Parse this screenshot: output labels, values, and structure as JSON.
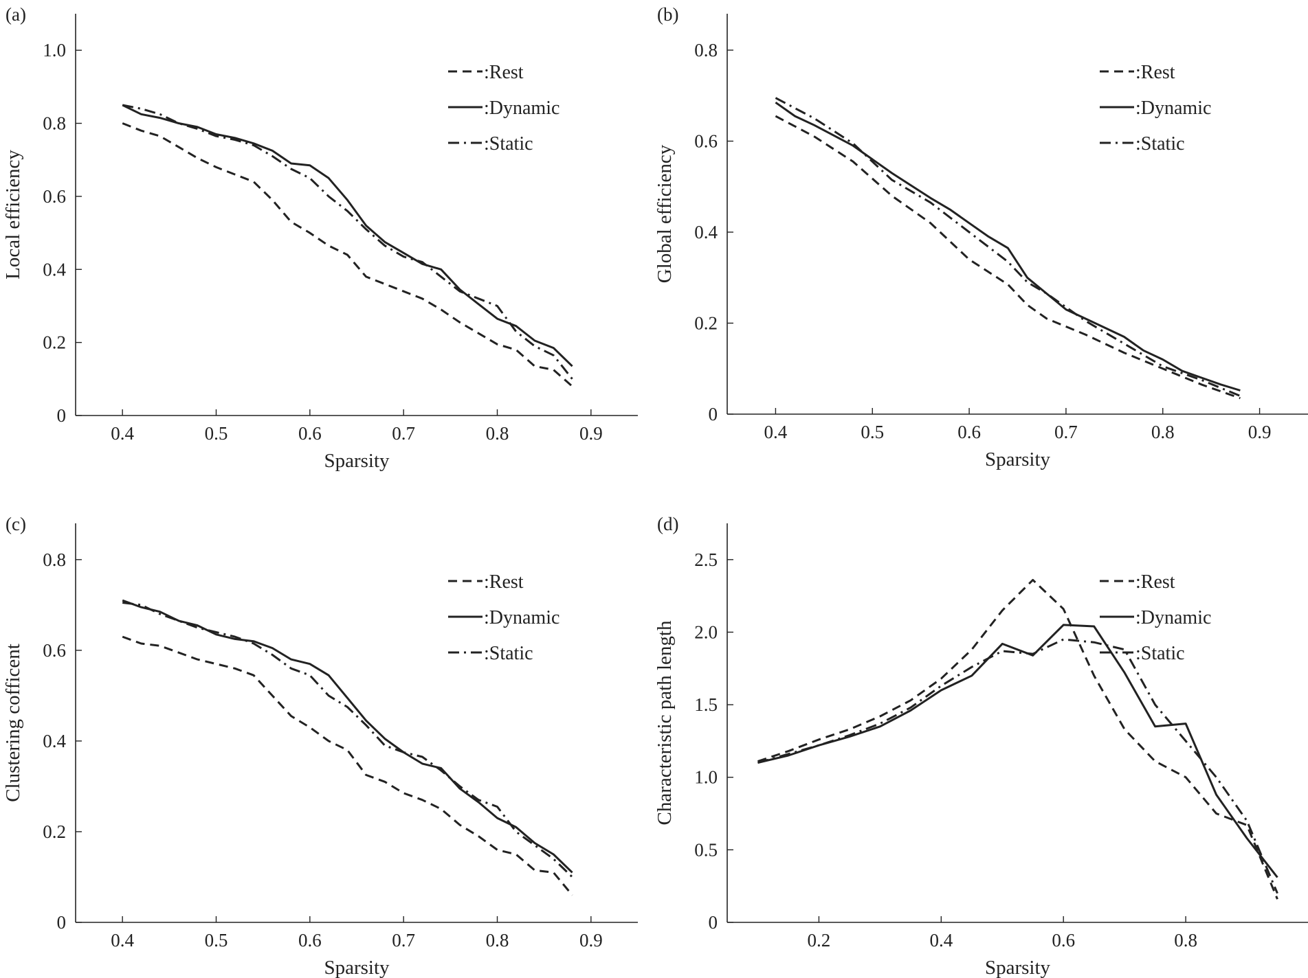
{
  "colors": {
    "line": "#222222",
    "background": "#ffffff"
  },
  "chart_data": [
    {
      "id": "a",
      "type": "line",
      "panel_label": "(a)",
      "xlabel": "Sparsity",
      "ylabel": "Local efficiency",
      "xlim": [
        0.35,
        0.95
      ],
      "ylim": [
        0,
        1.1
      ],
      "xticks": [
        0.4,
        0.5,
        0.6,
        0.7,
        0.8,
        0.9
      ],
      "xtick_labels": [
        "0.4",
        "0.5",
        "0.6",
        "0.7",
        "0.8",
        "0.9"
      ],
      "yticks": [
        0,
        0.2,
        0.4,
        0.6,
        0.8,
        1.0
      ],
      "ytick_labels": [
        "0",
        "0.2",
        "0.4",
        "0.6",
        "0.8",
        "1.0"
      ],
      "legend_position": "top-right",
      "series": [
        {
          "name": ":Rest",
          "style": "dashed",
          "x": [
            0.4,
            0.42,
            0.44,
            0.46,
            0.48,
            0.5,
            0.52,
            0.54,
            0.56,
            0.58,
            0.6,
            0.62,
            0.64,
            0.66,
            0.68,
            0.7,
            0.72,
            0.74,
            0.76,
            0.78,
            0.8,
            0.82,
            0.84,
            0.86,
            0.88
          ],
          "y": [
            0.8,
            0.78,
            0.765,
            0.735,
            0.705,
            0.68,
            0.66,
            0.64,
            0.59,
            0.53,
            0.5,
            0.465,
            0.44,
            0.38,
            0.36,
            0.34,
            0.32,
            0.29,
            0.255,
            0.225,
            0.195,
            0.18,
            0.135,
            0.125,
            0.08
          ]
        },
        {
          "name": ":Dynamic",
          "style": "solid",
          "x": [
            0.4,
            0.42,
            0.44,
            0.46,
            0.48,
            0.5,
            0.52,
            0.54,
            0.56,
            0.58,
            0.6,
            0.62,
            0.64,
            0.66,
            0.68,
            0.7,
            0.72,
            0.74,
            0.76,
            0.78,
            0.8,
            0.82,
            0.84,
            0.86,
            0.88
          ],
          "y": [
            0.85,
            0.825,
            0.815,
            0.8,
            0.79,
            0.77,
            0.76,
            0.745,
            0.725,
            0.69,
            0.685,
            0.65,
            0.59,
            0.52,
            0.475,
            0.445,
            0.415,
            0.4,
            0.345,
            0.305,
            0.265,
            0.245,
            0.205,
            0.185,
            0.135
          ]
        },
        {
          "name": ":Static",
          "style": "dashdot",
          "x": [
            0.4,
            0.42,
            0.44,
            0.46,
            0.48,
            0.5,
            0.52,
            0.54,
            0.56,
            0.58,
            0.6,
            0.62,
            0.64,
            0.66,
            0.68,
            0.7,
            0.72,
            0.74,
            0.76,
            0.78,
            0.8,
            0.82,
            0.84,
            0.86,
            0.88
          ],
          "y": [
            0.85,
            0.84,
            0.825,
            0.8,
            0.785,
            0.765,
            0.755,
            0.74,
            0.71,
            0.675,
            0.65,
            0.6,
            0.56,
            0.51,
            0.465,
            0.435,
            0.42,
            0.38,
            0.34,
            0.32,
            0.3,
            0.23,
            0.19,
            0.165,
            0.1
          ]
        }
      ]
    },
    {
      "id": "b",
      "type": "line",
      "panel_label": "(b)",
      "xlabel": "Sparsity",
      "ylabel": "Global efficiency",
      "xlim": [
        0.35,
        0.95
      ],
      "ylim": [
        0,
        0.88
      ],
      "xticks": [
        0.4,
        0.5,
        0.6,
        0.7,
        0.8,
        0.9
      ],
      "xtick_labels": [
        "0.4",
        "0.5",
        "0.6",
        "0.7",
        "0.8",
        "0.9"
      ],
      "yticks": [
        0,
        0.2,
        0.4,
        0.6,
        0.8
      ],
      "ytick_labels": [
        "0",
        "0.2",
        "0.4",
        "0.6",
        "0.8"
      ],
      "legend_position": "top-right",
      "series": [
        {
          "name": ":Rest",
          "style": "dashed",
          "x": [
            0.4,
            0.44,
            0.48,
            0.52,
            0.56,
            0.6,
            0.64,
            0.66,
            0.68,
            0.72,
            0.76,
            0.8,
            0.84,
            0.88
          ],
          "y": [
            0.655,
            0.61,
            0.555,
            0.48,
            0.42,
            0.34,
            0.285,
            0.24,
            0.21,
            0.175,
            0.135,
            0.1,
            0.065,
            0.035
          ]
        },
        {
          "name": ":Dynamic",
          "style": "solid",
          "x": [
            0.4,
            0.42,
            0.44,
            0.48,
            0.52,
            0.56,
            0.58,
            0.6,
            0.62,
            0.64,
            0.66,
            0.7,
            0.74,
            0.76,
            0.78,
            0.8,
            0.82,
            0.84,
            0.86,
            0.88
          ],
          "y": [
            0.685,
            0.655,
            0.635,
            0.59,
            0.53,
            0.475,
            0.45,
            0.42,
            0.39,
            0.365,
            0.3,
            0.23,
            0.19,
            0.17,
            0.14,
            0.12,
            0.095,
            0.08,
            0.065,
            0.052
          ]
        },
        {
          "name": ":Static",
          "style": "dashdot",
          "x": [
            0.4,
            0.44,
            0.48,
            0.52,
            0.56,
            0.6,
            0.64,
            0.66,
            0.68,
            0.72,
            0.76,
            0.8,
            0.84,
            0.88
          ],
          "y": [
            0.695,
            0.65,
            0.595,
            0.515,
            0.465,
            0.4,
            0.335,
            0.29,
            0.265,
            0.205,
            0.155,
            0.105,
            0.075,
            0.04
          ]
        }
      ]
    },
    {
      "id": "c",
      "type": "line",
      "panel_label": "(c)",
      "xlabel": "Sparsity",
      "ylabel": "Clustering cofficent",
      "xlim": [
        0.35,
        0.95
      ],
      "ylim": [
        0,
        0.88
      ],
      "xticks": [
        0.4,
        0.5,
        0.6,
        0.7,
        0.8,
        0.9
      ],
      "xtick_labels": [
        "0.4",
        "0.5",
        "0.6",
        "0.7",
        "0.8",
        "0.9"
      ],
      "yticks": [
        0,
        0.2,
        0.4,
        0.6,
        0.8
      ],
      "ytick_labels": [
        "0",
        "0.2",
        "0.4",
        "0.6",
        "0.8"
      ],
      "legend_position": "top-right",
      "series": [
        {
          "name": ":Rest",
          "style": "dashed",
          "x": [
            0.4,
            0.42,
            0.44,
            0.46,
            0.48,
            0.5,
            0.52,
            0.54,
            0.56,
            0.58,
            0.6,
            0.62,
            0.64,
            0.66,
            0.68,
            0.7,
            0.72,
            0.74,
            0.76,
            0.78,
            0.8,
            0.82,
            0.84,
            0.86,
            0.88
          ],
          "y": [
            0.63,
            0.615,
            0.61,
            0.595,
            0.58,
            0.57,
            0.56,
            0.545,
            0.5,
            0.455,
            0.43,
            0.4,
            0.38,
            0.325,
            0.31,
            0.285,
            0.27,
            0.25,
            0.215,
            0.19,
            0.16,
            0.15,
            0.115,
            0.11,
            0.06
          ]
        },
        {
          "name": ":Dynamic",
          "style": "solid",
          "x": [
            0.4,
            0.42,
            0.44,
            0.46,
            0.48,
            0.5,
            0.52,
            0.54,
            0.56,
            0.58,
            0.6,
            0.62,
            0.64,
            0.66,
            0.68,
            0.7,
            0.72,
            0.74,
            0.76,
            0.78,
            0.8,
            0.82,
            0.84,
            0.86,
            0.88
          ],
          "y": [
            0.71,
            0.695,
            0.685,
            0.665,
            0.655,
            0.635,
            0.625,
            0.62,
            0.605,
            0.58,
            0.57,
            0.545,
            0.495,
            0.445,
            0.405,
            0.375,
            0.35,
            0.34,
            0.295,
            0.265,
            0.23,
            0.21,
            0.175,
            0.15,
            0.11
          ]
        },
        {
          "name": ":Static",
          "style": "dashdot",
          "x": [
            0.4,
            0.42,
            0.44,
            0.46,
            0.48,
            0.5,
            0.52,
            0.54,
            0.56,
            0.58,
            0.6,
            0.62,
            0.64,
            0.66,
            0.68,
            0.7,
            0.72,
            0.74,
            0.76,
            0.78,
            0.8,
            0.82,
            0.84,
            0.86,
            0.88
          ],
          "y": [
            0.705,
            0.7,
            0.68,
            0.665,
            0.65,
            0.64,
            0.63,
            0.615,
            0.59,
            0.56,
            0.545,
            0.5,
            0.475,
            0.435,
            0.39,
            0.375,
            0.365,
            0.335,
            0.3,
            0.27,
            0.255,
            0.2,
            0.17,
            0.14,
            0.1
          ]
        }
      ]
    },
    {
      "id": "d",
      "type": "line",
      "panel_label": "(d)",
      "xlabel": "Sparsity",
      "ylabel": "Characteristic path length",
      "xlim": [
        0.05,
        1.0
      ],
      "ylim": [
        0,
        2.75
      ],
      "xticks": [
        0.2,
        0.4,
        0.6,
        0.8
      ],
      "xtick_labels": [
        "0.2",
        "0.4",
        "0.6",
        "0.8"
      ],
      "yticks": [
        0,
        0.5,
        1.0,
        1.5,
        2.0,
        2.5
      ],
      "ytick_labels": [
        "0",
        "0.5",
        "1.0",
        "1.5",
        "2.0",
        "2.5"
      ],
      "legend_position": "top-right",
      "series": [
        {
          "name": ":Rest",
          "style": "dashed",
          "x": [
            0.1,
            0.15,
            0.2,
            0.25,
            0.3,
            0.35,
            0.4,
            0.45,
            0.5,
            0.55,
            0.6,
            0.65,
            0.7,
            0.75,
            0.8,
            0.85,
            0.9,
            0.95
          ],
          "y": [
            1.11,
            1.18,
            1.26,
            1.33,
            1.42,
            1.53,
            1.68,
            1.88,
            2.15,
            2.36,
            2.16,
            1.7,
            1.33,
            1.11,
            1.0,
            0.75,
            0.67,
            0.16
          ]
        },
        {
          "name": ":Dynamic",
          "style": "solid",
          "x": [
            0.1,
            0.15,
            0.2,
            0.25,
            0.3,
            0.35,
            0.4,
            0.45,
            0.5,
            0.55,
            0.6,
            0.65,
            0.7,
            0.75,
            0.8,
            0.85,
            0.9,
            0.95
          ],
          "y": [
            1.1,
            1.15,
            1.22,
            1.28,
            1.35,
            1.46,
            1.6,
            1.7,
            1.92,
            1.84,
            2.05,
            2.04,
            1.72,
            1.35,
            1.37,
            0.88,
            0.58,
            0.31
          ]
        },
        {
          "name": ":Static",
          "style": "dashdot",
          "x": [
            0.1,
            0.15,
            0.2,
            0.25,
            0.3,
            0.35,
            0.4,
            0.45,
            0.5,
            0.55,
            0.6,
            0.65,
            0.7,
            0.75,
            0.8,
            0.85,
            0.9,
            0.95
          ],
          "y": [
            1.1,
            1.16,
            1.22,
            1.29,
            1.37,
            1.48,
            1.63,
            1.76,
            1.87,
            1.85,
            1.95,
            1.93,
            1.88,
            1.5,
            1.25,
            1.0,
            0.7,
            0.2
          ]
        }
      ]
    }
  ]
}
